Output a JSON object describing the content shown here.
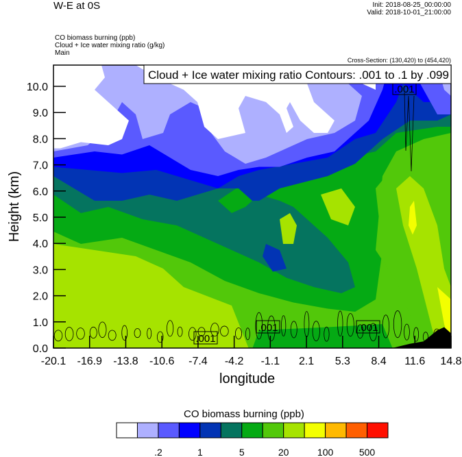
{
  "header": {
    "title": "W-E at 0S",
    "init": "Init: 2018-08-25_00:00:00",
    "valid": "Valid: 2018-10-01_21:00:00"
  },
  "fields": [
    "CO biomass burning   (ppb)",
    "Cloud + Ice water mixing ratio   (g/kg)",
    "Main"
  ],
  "cross_section": "Cross-Section: (130,420) to (454,420)",
  "chart_data": {
    "type": "heatmap",
    "title": "Cloud + Ice water mixing ratio Contours: .001 to .1 by .099",
    "xlabel": "longitude",
    "ylabel": "Height (km)",
    "xlim": [
      -20.1,
      14.8
    ],
    "ylim": [
      0,
      10.8
    ],
    "xticks": [
      "-20.1",
      "-16.9",
      "-13.8",
      "-10.6",
      "-7.4",
      "-4.2",
      "-1.1",
      "2.1",
      "5.3",
      "8.4",
      "11.6",
      "14.8"
    ],
    "yticks": [
      "0.0",
      "1.0",
      "2.0",
      "3.0",
      "4.0",
      "5.0",
      "6.0",
      "7.0",
      "8.0",
      "9.0",
      "10.0"
    ],
    "contour_labels": [
      ".001",
      ".001",
      ".001",
      ".001"
    ],
    "colorbar": {
      "title": "CO biomass burning  (ppb)",
      "colors": [
        "#ffffff",
        "#aeb0ff",
        "#5a5aff",
        "#0000ff",
        "#0234b4",
        "#05745f",
        "#05aa14",
        "#52c80a",
        "#a6e300",
        "#f3ff00",
        "#ffb900",
        "#ff5f00",
        "#ff0f00"
      ],
      "labels": [
        ".2",
        "1",
        "5",
        "20",
        "100",
        "500"
      ]
    }
  }
}
